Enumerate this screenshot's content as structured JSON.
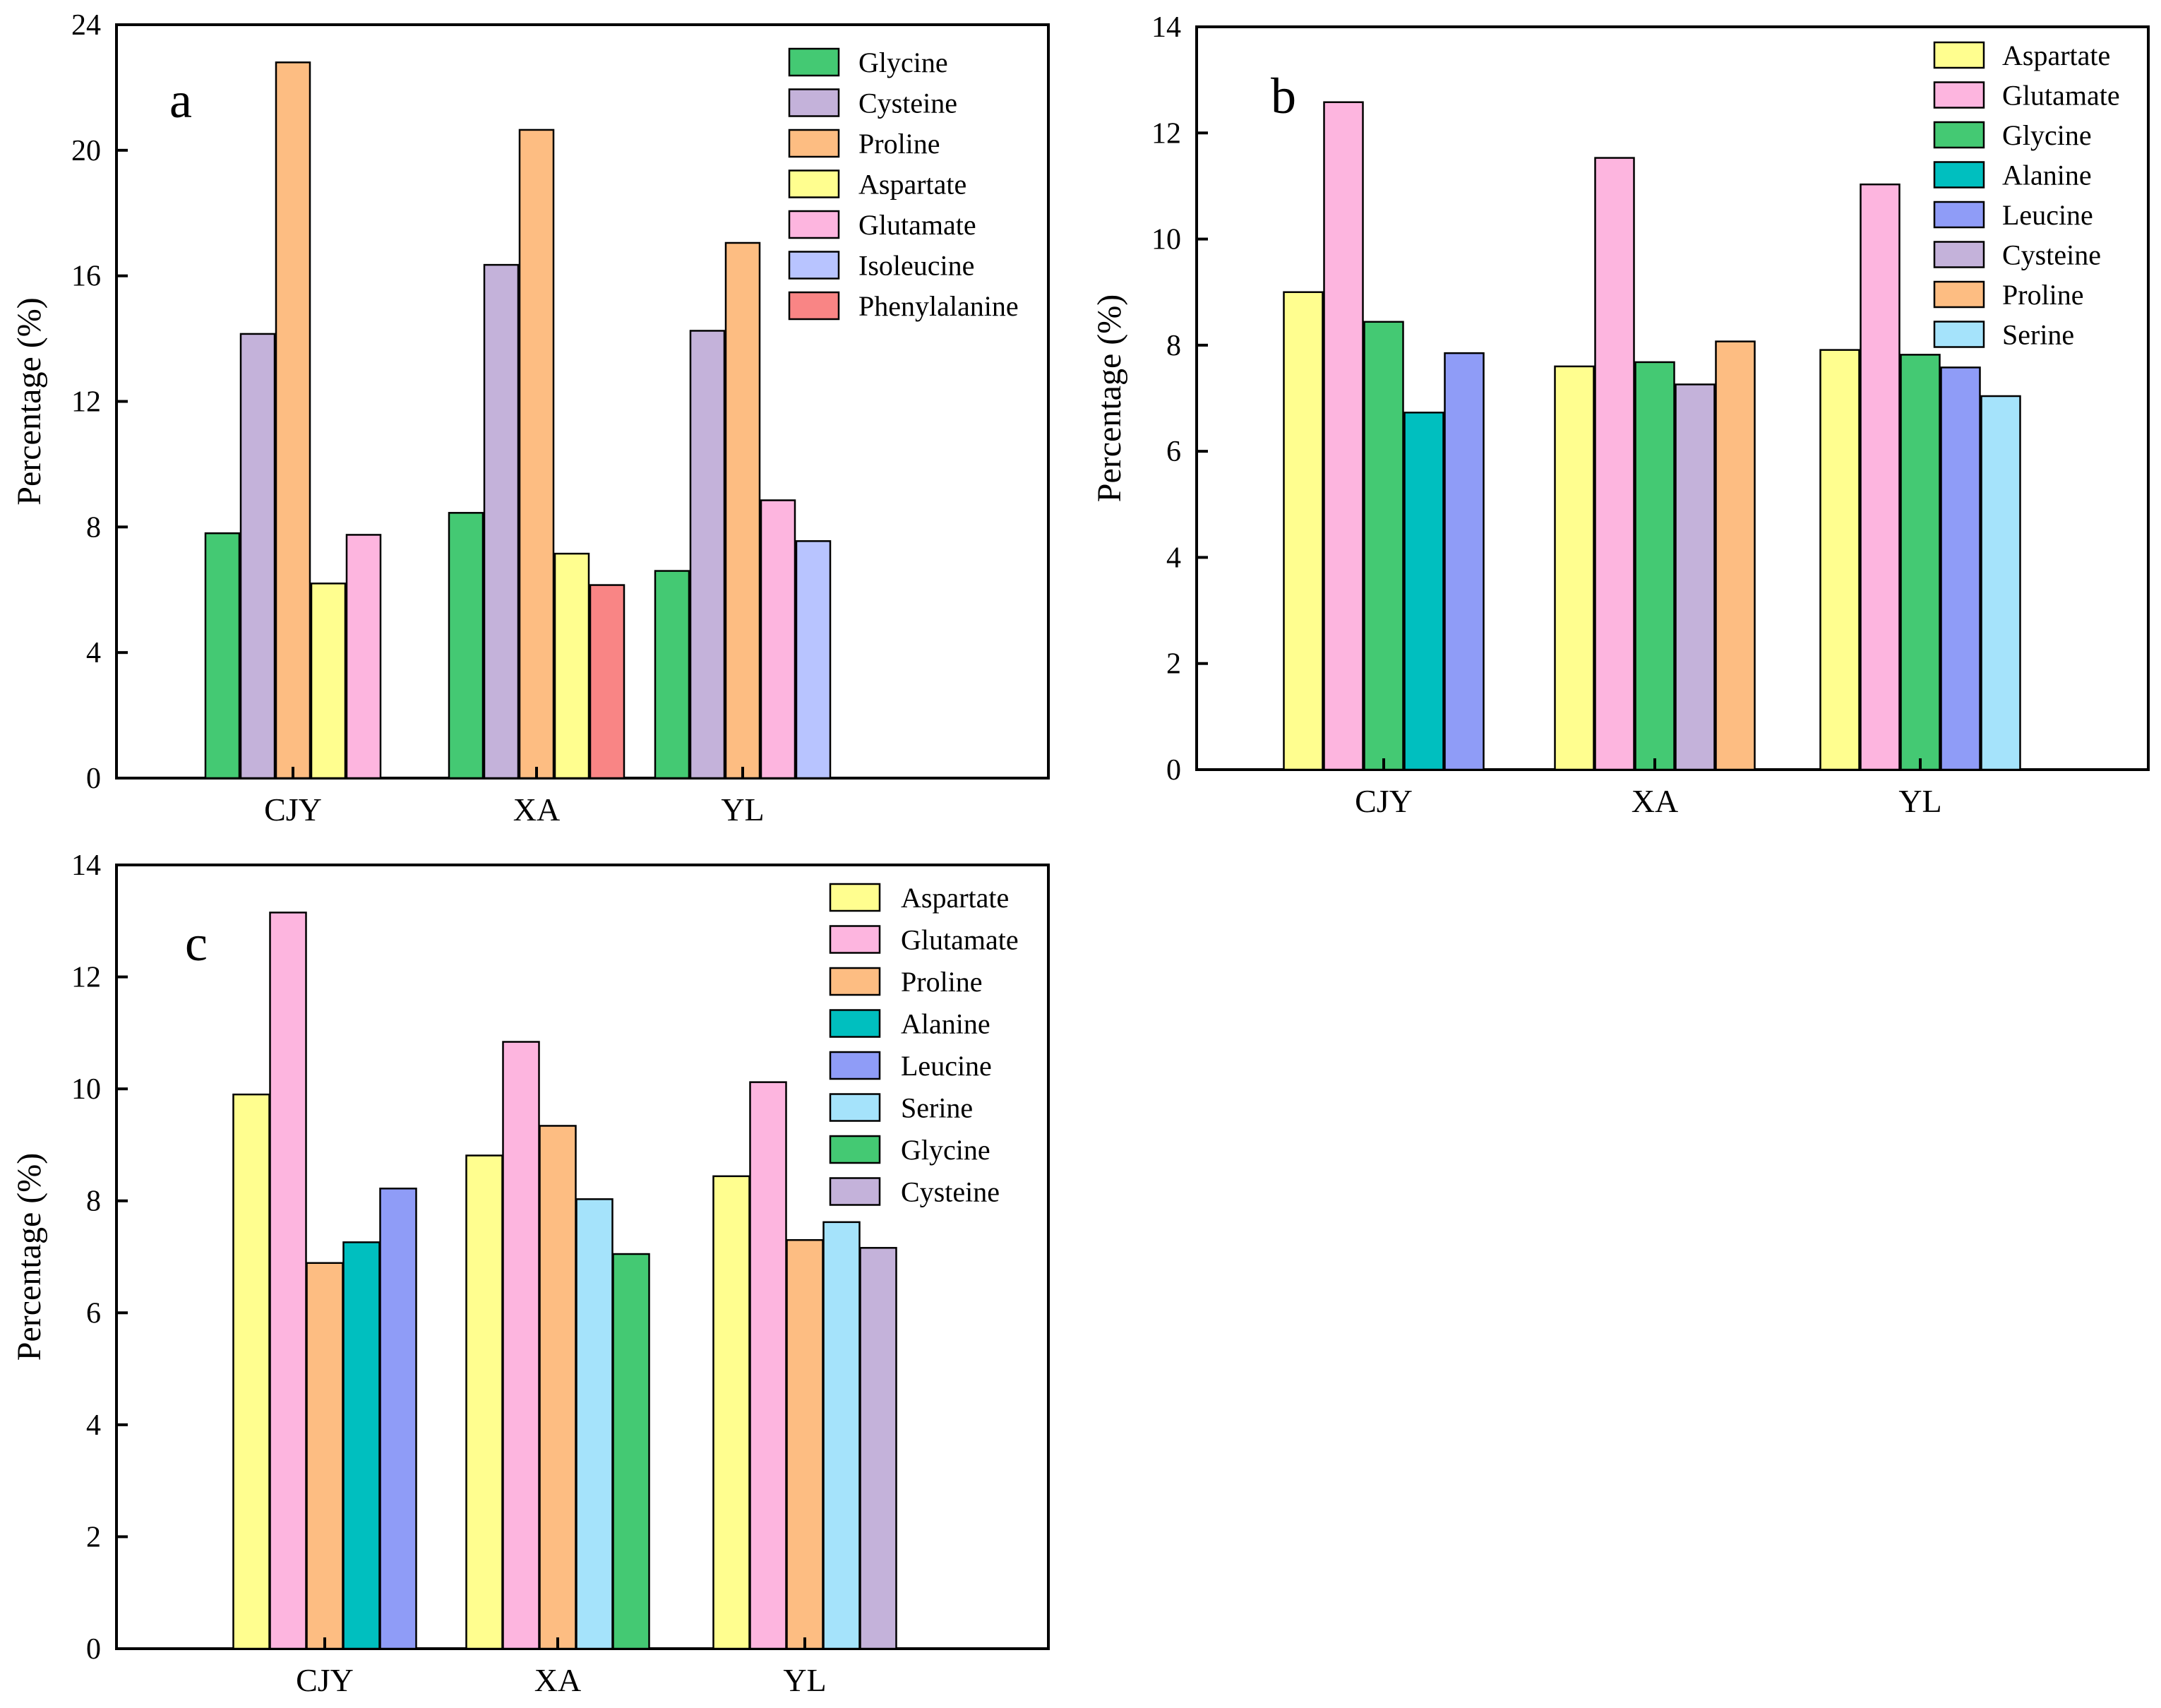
{
  "chart_data": [
    {
      "type": "bar",
      "panel_label": "a",
      "ylabel": "Percentage (%)",
      "ylim": [
        0,
        24
      ],
      "yticks": [
        "0",
        "4",
        "8",
        "12",
        "16",
        "20",
        "24"
      ],
      "categories": [
        "CJY",
        "XA",
        "YL"
      ],
      "legend_position": "top-right",
      "legend": [
        "Glycine",
        "Cysteine",
        "Proline",
        "Aspartate",
        "Glutamate",
        "Isoleucine",
        "Phenylalanine"
      ],
      "colors": {
        "Glycine": "#44c973",
        "Cysteine": "#c4b2da",
        "Proline": "#fdbd82",
        "Aspartate": "#fffe8f",
        "Glutamate": "#fdb5df",
        "Isoleucine": "#b8c4ff",
        "Phenylalanine": "#f98585"
      },
      "groups": [
        {
          "category": "CJY",
          "bars": [
            {
              "series": "Glycine",
              "value": 7.8
            },
            {
              "series": "Cysteine",
              "value": 14.15
            },
            {
              "series": "Proline",
              "value": 22.8
            },
            {
              "series": "Aspartate",
              "value": 6.2
            },
            {
              "series": "Glutamate",
              "value": 7.75
            }
          ]
        },
        {
          "category": "XA",
          "bars": [
            {
              "series": "Glycine",
              "value": 8.45
            },
            {
              "series": "Cysteine",
              "value": 16.35
            },
            {
              "series": "Proline",
              "value": 20.65
            },
            {
              "series": "Aspartate",
              "value": 7.15
            },
            {
              "series": "Phenylalanine",
              "value": 6.15
            }
          ]
        },
        {
          "category": "YL",
          "bars": [
            {
              "series": "Glycine",
              "value": 6.6
            },
            {
              "series": "Cysteine",
              "value": 14.25
            },
            {
              "series": "Proline",
              "value": 17.05
            },
            {
              "series": "Glutamate",
              "value": 8.85
            },
            {
              "series": "Isoleucine",
              "value": 7.55
            }
          ]
        }
      ]
    },
    {
      "type": "bar",
      "panel_label": "b",
      "ylabel": "Percentage (%)",
      "ylim": [
        0,
        14
      ],
      "yticks": [
        "0",
        "2",
        "4",
        "6",
        "8",
        "10",
        "12",
        "14"
      ],
      "categories": [
        "CJY",
        "XA",
        "YL"
      ],
      "legend_position": "top-right",
      "legend": [
        "Aspartate",
        "Glutamate",
        "Glycine",
        "Alanine",
        "Leucine",
        "Cysteine",
        "Proline",
        "Serine"
      ],
      "colors": {
        "Aspartate": "#fffe8f",
        "Glutamate": "#fdb5df",
        "Glycine": "#44c973",
        "Alanine": "#00bfbf",
        "Leucine": "#8f9cf7",
        "Cysteine": "#c4b2da",
        "Proline": "#fdbd82",
        "Serine": "#a5e3fb"
      },
      "groups": [
        {
          "category": "CJY",
          "bars": [
            {
              "series": "Aspartate",
              "value": 9.0
            },
            {
              "series": "Glutamate",
              "value": 12.58
            },
            {
              "series": "Glycine",
              "value": 8.44
            },
            {
              "series": "Alanine",
              "value": 6.73
            },
            {
              "series": "Leucine",
              "value": 7.85
            }
          ]
        },
        {
          "category": "XA",
          "bars": [
            {
              "series": "Aspartate",
              "value": 7.6
            },
            {
              "series": "Glutamate",
              "value": 11.53
            },
            {
              "series": "Glycine",
              "value": 7.68
            },
            {
              "series": "Cysteine",
              "value": 7.26
            },
            {
              "series": "Proline",
              "value": 8.07
            }
          ]
        },
        {
          "category": "YL",
          "bars": [
            {
              "series": "Aspartate",
              "value": 7.91
            },
            {
              "series": "Glutamate",
              "value": 11.03
            },
            {
              "series": "Glycine",
              "value": 7.82
            },
            {
              "series": "Leucine",
              "value": 7.58
            },
            {
              "series": "Serine",
              "value": 7.04
            }
          ]
        }
      ]
    },
    {
      "type": "bar",
      "panel_label": "c",
      "ylabel": "Percentage (%)",
      "ylim": [
        0,
        14
      ],
      "yticks": [
        "0",
        "2",
        "4",
        "6",
        "8",
        "10",
        "12",
        "14"
      ],
      "categories": [
        "CJY",
        "XA",
        "YL"
      ],
      "legend_position": "top-right",
      "legend": [
        "Aspartate",
        "Glutamate",
        "Proline",
        "Alanine",
        "Leucine",
        "Serine",
        "Glycine",
        "Cysteine"
      ],
      "colors": {
        "Aspartate": "#fffe8f",
        "Glutamate": "#fdb5df",
        "Proline": "#fdbd82",
        "Alanine": "#00bfbf",
        "Leucine": "#8f9cf7",
        "Serine": "#a5e3fb",
        "Glycine": "#44c973",
        "Cysteine": "#c4b2da"
      },
      "groups": [
        {
          "category": "CJY",
          "bars": [
            {
              "series": "Aspartate",
              "value": 9.9
            },
            {
              "series": "Glutamate",
              "value": 13.15
            },
            {
              "series": "Proline",
              "value": 6.89
            },
            {
              "series": "Alanine",
              "value": 7.26
            },
            {
              "series": "Leucine",
              "value": 8.22
            }
          ]
        },
        {
          "category": "XA",
          "bars": [
            {
              "series": "Aspartate",
              "value": 8.81
            },
            {
              "series": "Glutamate",
              "value": 10.84
            },
            {
              "series": "Proline",
              "value": 9.34
            },
            {
              "series": "Serine",
              "value": 8.03
            },
            {
              "series": "Glycine",
              "value": 7.05
            }
          ]
        },
        {
          "category": "YL",
          "bars": [
            {
              "series": "Aspartate",
              "value": 8.44
            },
            {
              "series": "Glutamate",
              "value": 10.12
            },
            {
              "series": "Proline",
              "value": 7.3
            },
            {
              "series": "Serine",
              "value": 7.62
            },
            {
              "series": "Cysteine",
              "value": 7.16
            }
          ]
        }
      ]
    }
  ]
}
